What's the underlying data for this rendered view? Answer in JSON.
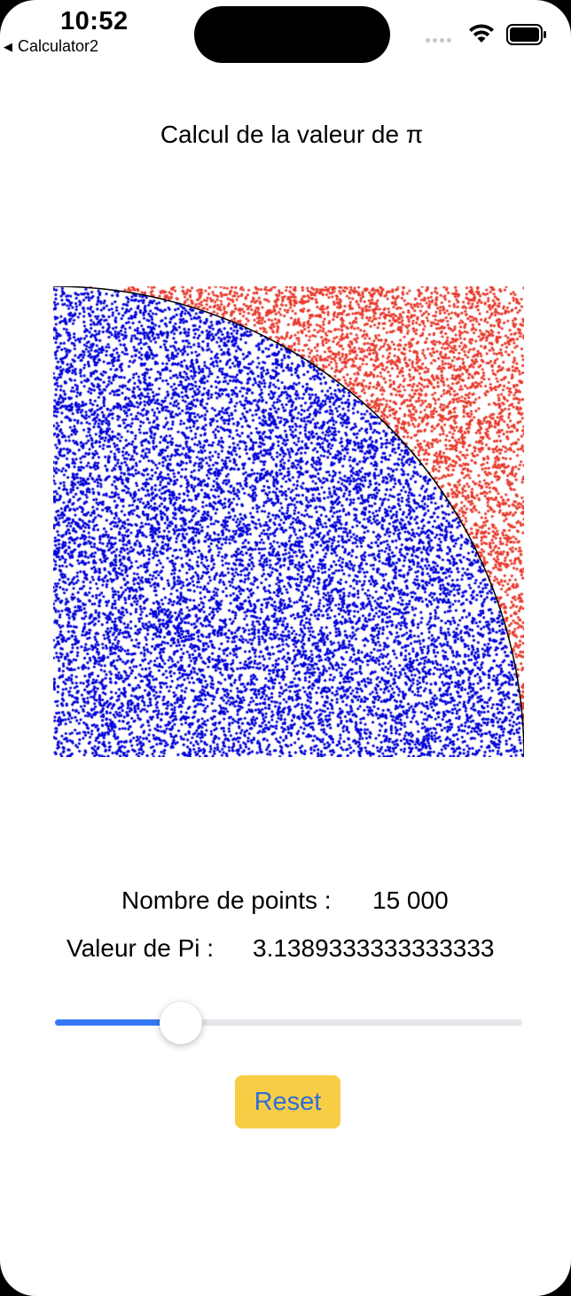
{
  "status_bar": {
    "time": "10:52",
    "back_app": "Calculator2",
    "back_glyph": "◀"
  },
  "title": "Calcul de la valeur de π",
  "simulation": {
    "inside_color": "#0000d8",
    "outside_color": "#e8392b",
    "arc_color": "#000000",
    "point_count": 15000
  },
  "stats": {
    "points_label": "Nombre de points :",
    "points_value": "15 000",
    "pi_label": "Valeur de Pi :",
    "pi_value": "3.1389333333333333"
  },
  "slider": {
    "value_fraction": 0.27,
    "fill_color": "#3478f6"
  },
  "reset_button": {
    "label": "Reset",
    "background": "#f8cd46",
    "text_color": "#2f6fd6"
  }
}
